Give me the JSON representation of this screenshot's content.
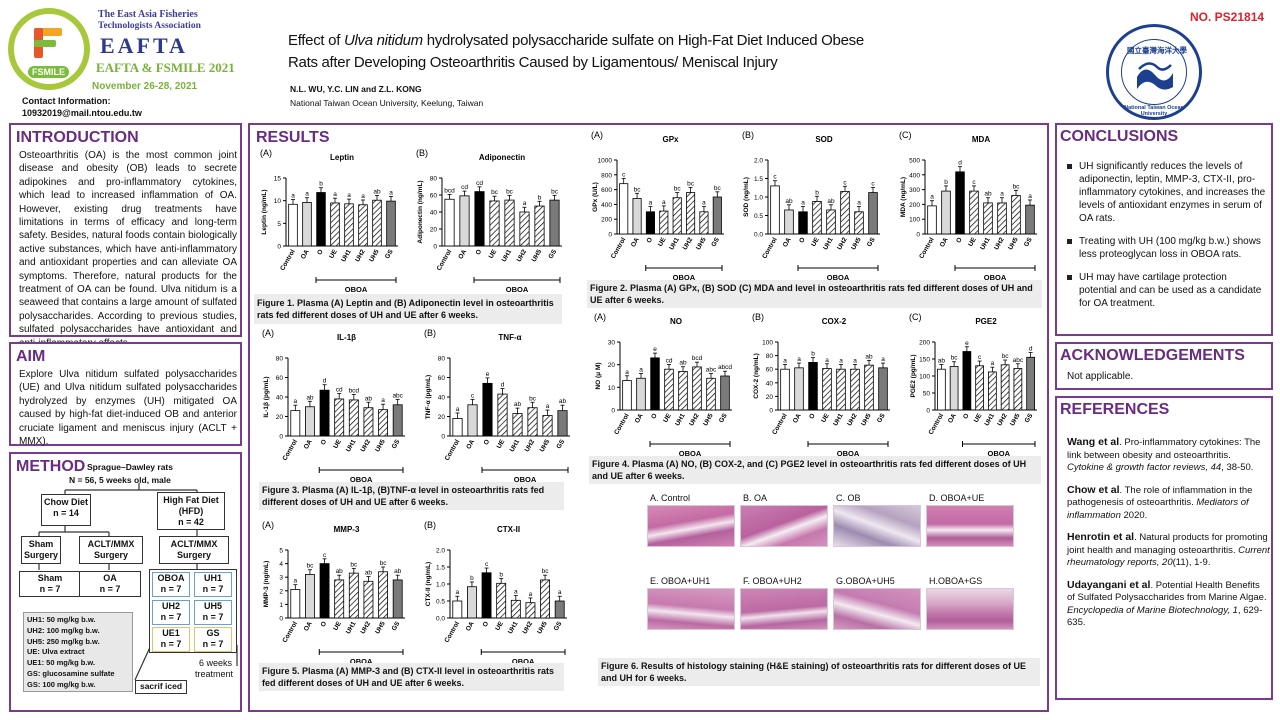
{
  "header": {
    "assoc_line1": "The East Asia Fisheries",
    "assoc_line2": "Technologists Association",
    "eafta": "EAFTA",
    "event": "EAFTA & FSMILE 2021",
    "dates": "November 26-28, 2021",
    "contact_label": "Contact Information:",
    "contact_email": "10932019@mail.ntou.edu.tw",
    "title_pre": "Effect of ",
    "title_italic": "Ulva nitidum",
    "title_post": " hydrolysated polysaccharide sulfate on High-Fat Diet Induced Obese",
    "title_line2": "Rats after Developing Osteoarthritis Caused by Ligamentous/ Meniscal Injury",
    "authors": "N.L. WU, Y.C. LIN and Z.L. KONG",
    "affiliation": "National Taiwan Ocean University, Keelung, Taiwan",
    "poster_no": "NO. PS21814",
    "seal_text": "國立臺灣海洋大學",
    "seal_ring": "National Taiwan Ocean University",
    "fsmile_text": "FSMILE"
  },
  "introduction": {
    "title": "INTRODUCTION",
    "text": "Osteoarthritis (OA) is the most common joint disease and obesity (OB) leads to secrete adipokines and pro-inflammatory cytokines, which lead to increased inflammation of OA. However, existing drug treatments have limitations in terms of efficacy and long-term safety. Besides, natural foods contain biologically active substances, which have anti-inflammatory and antioxidant properties and can alleviate OA symptoms. Therefore, natural products for the treatment of OA can be found. Ulva nitidum is a seaweed that contains a large amount of sulfated polysaccharides. According to previous studies, sulfated polysaccharides have antioxidant and anti-inflammatory effects."
  },
  "aim": {
    "title": "AIM",
    "text": "Explore Ulva nitidum sulfated polysaccharides (UE) and Ulva nitidum sulfated polysaccharides hydrolyzed by enzymes (UH) mitigated OA caused by high-fat diet-induced OB and anterior cruciate ligament and meniscus injury (ACLT + MMX)."
  },
  "method": {
    "title": "METHOD",
    "animal": "Sprague–Dawley rats",
    "n": "N = 56, 5 weeks old, male",
    "chow": "Chow Diet",
    "chow_n": "n = 14",
    "hfd": "High Fat Diet (HFD)",
    "hfd_n": "n = 42",
    "sham_surgery": "Sham Surgery",
    "aclt1": "ACLT/MMX Surgery",
    "aclt2": "ACLT/MMX Surgery",
    "sham": "Sham",
    "sham_n": "n = 7",
    "oa": "OA",
    "oa_n": "n = 7",
    "groups": [
      {
        "name": "OBOA",
        "n": "n = 7"
      },
      {
        "name": "UH1",
        "n": "n = 7"
      },
      {
        "name": "UH2",
        "n": "n = 7"
      },
      {
        "name": "UH5",
        "n": "n = 7"
      },
      {
        "name": "UE1",
        "n": "n = 7"
      },
      {
        "name": "GS",
        "n": "n = 7"
      }
    ],
    "legend": [
      "UH1: 50 mg/kg b.w.",
      "UH2: 100 mg/kg b.w.",
      "UH5: 250 mg/kg b.w.",
      "UE: Ulva extract",
      "UE1: 50 mg/kg b.w.",
      "GS: glucosamine sulfate",
      "GS: 100 mg/kg b.w."
    ],
    "weeks": "6 weeks",
    "treatment": "treatment",
    "sacrif": "sacrif iced"
  },
  "results": {
    "title": "RESULTS",
    "fig1": "Figure 1. Plasma (A) Leptin and (B) Adiponectin level in osteoarthritis rats fed different doses of UH and UE after 6 weeks.",
    "fig2": "Figure 2. Plasma (A) GPx, (B) SOD (C) MDA and level in osteoarthritis rats fed different doses of UH and UE after 6 weeks.",
    "fig3": "Figure 3. Plasma (A) IL-1β, (B)TNF-α level in osteoarthritis rats fed different doses of UH and UE after 6 weeks.",
    "fig4": "Figure 4. Plasma (A) NO, (B) COX-2, and (C) PGE2 level in osteoarthritis rats fed different doses of UH and UE after 6 weeks.",
    "fig5": "Figure 5. Plasma (A) MMP-3 and (B) CTX-II level in osteoarthritis rats fed different doses of UH and UE after 6 weeks.",
    "fig6": "Figure 6. Results of histology staining (H&E staining) of osteoarthritis rats for different doses of UE and UH for 6 weeks.",
    "histo_labels": [
      "A. Control",
      "B. OA",
      "C. OB",
      "D. OBOA+UE",
      "E. OBOA+UH1",
      "F. OBOA+UH2",
      "G.OBOA+UH5",
      "H.OBOA+GS"
    ],
    "obo_label": "OBOA"
  },
  "conclusions": {
    "title": "CONCLUSIONS",
    "items": [
      "UH significantly reduces the levels of adiponectin, leptin, MMP-3, CTX-II, pro-inflammatory cytokines, and increases the levels of antioxidant enzymes in serum of OA rats.",
      "Treating with UH (100 mg/kg b.w.) shows less proteoglycan loss in OBOA rats.",
      "UH may have cartilage protection potential and can be used as a candidate for OA treatment."
    ]
  },
  "acknowledgements": {
    "title": "ACKNOWLEDGEMENTS",
    "text": "Not applicable."
  },
  "references": {
    "title": "REFERENCES",
    "items": [
      {
        "author": "Wang et al",
        "text": ". Pro-inflammatory cytokines: The link between obesity and osteoarthritis. ",
        "journal": "Cytokine & growth factor reviews, 44",
        "tail": ", 38-50."
      },
      {
        "author": "Chow et al",
        "text": ". The role of inflammation in the pathogenesis of osteoarthritis. ",
        "journal": "Mediators of inflammation",
        "tail": " 2020."
      },
      {
        "author": "Henrotin et al",
        "text": ". Natural products for promoting joint health and managing osteoarthritis. ",
        "journal": "Current rheumatology reports, 20",
        "tail": "(11), 1-9."
      },
      {
        "author": "Udayangani et al",
        "text": ". Potential Health Benefits of Sulfated Polysaccharides from Marine Algae. ",
        "journal": "Encyclopedia of Marine Biotechnology, 1",
        "tail": ", 629-635."
      }
    ]
  },
  "chart_data": [
    {
      "id": "leptin",
      "type": "bar",
      "panel": "(A)",
      "title": "Leptin",
      "ylabel": "Leptin (ng/mL)",
      "ylim": [
        0,
        15
      ],
      "ticks": [
        0,
        5,
        10,
        15
      ],
      "categories": [
        "Control",
        "OA",
        "O",
        "UE",
        "UH1",
        "UH2",
        "UH5",
        "GS"
      ],
      "values": [
        9.2,
        9.6,
        11.8,
        9.5,
        9.3,
        9.1,
        10.1,
        9.9
      ],
      "letters": [
        "a",
        "a",
        "b",
        "a",
        "a",
        "a",
        "ab",
        "a"
      ]
    },
    {
      "id": "adiponectin",
      "type": "bar",
      "panel": "(B)",
      "title": "Adiponectin",
      "ylabel": "Adiponectin (ng/mL)",
      "ylim": [
        0,
        80
      ],
      "ticks": [
        0,
        20,
        40,
        60,
        80
      ],
      "categories": [
        "Control",
        "OA",
        "O",
        "UE",
        "UH1",
        "UH2",
        "UH5",
        "GS"
      ],
      "values": [
        55,
        59,
        64,
        53,
        54,
        40,
        47,
        54
      ],
      "letters": [
        "bcd",
        "cd",
        "cd",
        "bc",
        "bc",
        "a",
        "b",
        "bc"
      ]
    },
    {
      "id": "gpx",
      "type": "bar",
      "panel": "(A)",
      "title": "GPx",
      "ylabel": "GPx (U/L)",
      "ylim": [
        0,
        1000
      ],
      "ticks": [
        0,
        200,
        400,
        600,
        800,
        1000
      ],
      "categories": [
        "Control",
        "OA",
        "O",
        "UE",
        "UH1",
        "UH2",
        "UH5",
        "GS"
      ],
      "values": [
        680,
        480,
        300,
        310,
        490,
        560,
        300,
        500
      ],
      "letters": [
        "c",
        "bc",
        "a",
        "a",
        "bc",
        "bc",
        "a",
        "bc"
      ]
    },
    {
      "id": "sod",
      "type": "bar",
      "panel": "(B)",
      "title": "SOD",
      "ylabel": "SOD (ng/mL)",
      "ylim": [
        0,
        2.0
      ],
      "ticks": [
        0.0,
        0.5,
        1.0,
        1.5,
        2.0
      ],
      "categories": [
        "Control",
        "OA",
        "O",
        "UE",
        "UH1",
        "UH2",
        "UH5",
        "GS"
      ],
      "values": [
        1.3,
        0.65,
        0.6,
        0.88,
        0.65,
        1.15,
        0.6,
        1.12
      ],
      "letters": [
        "c",
        "ab",
        "a",
        "b",
        "ab",
        "c",
        "a",
        "c"
      ]
    },
    {
      "id": "mda",
      "type": "bar",
      "panel": "(C)",
      "title": "MDA",
      "ylabel": "MDA (ng/mL)",
      "ylim": [
        0,
        500
      ],
      "ticks": [
        0,
        100,
        200,
        300,
        400,
        500
      ],
      "categories": [
        "Control",
        "OA",
        "O",
        "UE",
        "UH1",
        "UH2",
        "UH5",
        "GS"
      ],
      "values": [
        190,
        290,
        420,
        290,
        210,
        210,
        260,
        195
      ],
      "letters": [
        "a",
        "b",
        "d",
        "c",
        "ab",
        "a",
        "bc",
        "a"
      ]
    },
    {
      "id": "il1b",
      "type": "bar",
      "panel": "(A)",
      "title": "IL-1β",
      "ylabel": "IL-1β (pg/mL)",
      "ylim": [
        0,
        80
      ],
      "ticks": [
        0,
        20,
        40,
        60,
        80
      ],
      "categories": [
        "Control",
        "OA",
        "O",
        "UE",
        "UH1",
        "UH2",
        "UH5",
        "GS"
      ],
      "values": [
        26,
        30,
        47,
        38,
        37,
        29,
        27,
        32
      ],
      "letters": [
        "a",
        "ab",
        "d",
        "cd",
        "bcd",
        "ab",
        "a",
        "abc"
      ]
    },
    {
      "id": "tnfa",
      "type": "bar",
      "panel": "(B)",
      "title": "TNF-α",
      "ylabel": "TNF-α (pg/mL)",
      "ylim": [
        0,
        80
      ],
      "ticks": [
        0,
        20,
        40,
        60,
        80
      ],
      "categories": [
        "Control",
        "OA",
        "O",
        "UE",
        "UH1",
        "UH2",
        "UH5",
        "GS"
      ],
      "values": [
        18,
        32,
        54,
        43,
        23,
        29,
        21,
        26
      ],
      "letters": [
        "a",
        "c",
        "e",
        "d",
        "ab",
        "bc",
        "a",
        "ab"
      ]
    },
    {
      "id": "no",
      "type": "bar",
      "panel": "(A)",
      "title": "NO",
      "ylabel": "NO (μ M)",
      "ylim": [
        0,
        30
      ],
      "ticks": [
        0,
        10,
        20,
        30
      ],
      "categories": [
        "Control",
        "OA",
        "O",
        "UE",
        "UH1",
        "UH2",
        "UH5",
        "GS"
      ],
      "values": [
        13,
        14,
        23,
        18,
        17,
        19,
        14,
        15
      ],
      "letters": [
        "a",
        "a",
        "e",
        "cd",
        "ab",
        "bcd",
        "abc",
        "abcd"
      ]
    },
    {
      "id": "cox2",
      "type": "bar",
      "panel": "(B)",
      "title": "COX-2",
      "ylabel": "COX-2 (ng/mL)",
      "ylim": [
        0,
        100
      ],
      "ticks": [
        0,
        20,
        40,
        60,
        80,
        100
      ],
      "categories": [
        "Control",
        "OA",
        "O",
        "UE",
        "UH1",
        "UH2",
        "UH5",
        "GS"
      ],
      "values": [
        60,
        62,
        70,
        61,
        60,
        60,
        66,
        62
      ],
      "letters": [
        "a",
        "a",
        "b",
        "a",
        "a",
        "a",
        "ab",
        "a"
      ]
    },
    {
      "id": "pge2",
      "type": "bar",
      "panel": "(C)",
      "title": "PGE2",
      "ylabel": "PGE2 (pg/mL)",
      "ylim": [
        0,
        200
      ],
      "ticks": [
        0,
        50,
        100,
        150,
        200
      ],
      "categories": [
        "Control",
        "OA",
        "O",
        "UE",
        "UH1",
        "UH2",
        "UH5",
        "GS"
      ],
      "values": [
        120,
        128,
        172,
        130,
        112,
        133,
        122,
        155
      ],
      "letters": [
        "ab",
        "bc",
        "e",
        "c",
        "a",
        "bc",
        "abc",
        "d"
      ]
    },
    {
      "id": "mmp3",
      "type": "bar",
      "panel": "(A)",
      "title": "MMP-3",
      "ylabel": "MMP-3 (ng/mL)",
      "ylim": [
        0,
        5
      ],
      "ticks": [
        0,
        1,
        2,
        3,
        4,
        5
      ],
      "categories": [
        "Control",
        "OA",
        "O",
        "UE",
        "UH1",
        "UH2",
        "UH5",
        "GS"
      ],
      "values": [
        2.1,
        3.2,
        4.0,
        2.8,
        3.3,
        2.7,
        3.4,
        2.8
      ],
      "letters": [
        "a",
        "bc",
        "c",
        "ab",
        "bc",
        "ab",
        "bc",
        "ab"
      ]
    },
    {
      "id": "ctx2",
      "type": "bar",
      "panel": "(B)",
      "title": "CTX-II",
      "ylabel": "CTX-II (ng/mL)",
      "ylim": [
        0,
        2.0
      ],
      "ticks": [
        0.0,
        0.5,
        1.0,
        1.5,
        2.0
      ],
      "categories": [
        "Control",
        "OA",
        "O",
        "UE",
        "UH1",
        "UH2",
        "UH5",
        "GS"
      ],
      "values": [
        0.5,
        0.92,
        1.33,
        1.02,
        0.52,
        0.45,
        1.12,
        0.5
      ],
      "letters": [
        "a",
        "b",
        "c",
        "b",
        "a",
        "a",
        "bc",
        "a"
      ]
    }
  ]
}
